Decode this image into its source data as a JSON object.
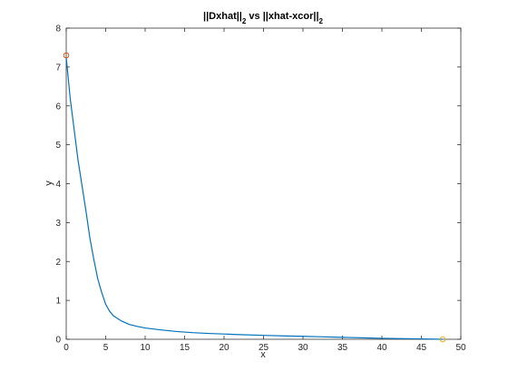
{
  "chart_data": {
    "type": "line",
    "title": {
      "parts": [
        {
          "text": "||Dxhat||",
          "sub": false
        },
        {
          "text": "2",
          "sub": true
        },
        {
          "text": " vs ||xhat-xcor||",
          "sub": false
        },
        {
          "text": "2",
          "sub": true
        }
      ]
    },
    "xlabel": "x",
    "ylabel": "y",
    "xlim": [
      0,
      50
    ],
    "ylim": [
      0,
      8
    ],
    "xticks": [
      0,
      5,
      10,
      15,
      20,
      25,
      30,
      35,
      40,
      45,
      50
    ],
    "yticks": [
      0,
      1,
      2,
      3,
      4,
      5,
      6,
      7,
      8
    ],
    "grid": false,
    "series": [
      {
        "color": "#0072BD",
        "x": [
          0,
          0.5,
          1,
          1.5,
          2,
          2.5,
          3,
          3.5,
          4,
          4.5,
          5,
          5.5,
          6,
          7,
          8,
          9,
          10,
          12,
          14,
          16,
          18,
          20,
          22,
          25,
          28,
          30,
          32,
          35,
          38,
          40,
          42,
          45,
          46,
          47.7
        ],
        "y": [
          7.25,
          6.2,
          5.4,
          4.6,
          3.95,
          3.3,
          2.6,
          2.05,
          1.55,
          1.2,
          0.9,
          0.72,
          0.6,
          0.47,
          0.38,
          0.33,
          0.29,
          0.24,
          0.2,
          0.17,
          0.15,
          0.135,
          0.12,
          0.1,
          0.085,
          0.075,
          0.065,
          0.05,
          0.035,
          0.025,
          0.018,
          0.01,
          0.007,
          0.0
        ]
      }
    ],
    "markers": [
      {
        "x": 0,
        "y": 7.3,
        "color": "#D95319"
      },
      {
        "x": 47.7,
        "y": 0,
        "color": "#EDB120"
      }
    ]
  }
}
